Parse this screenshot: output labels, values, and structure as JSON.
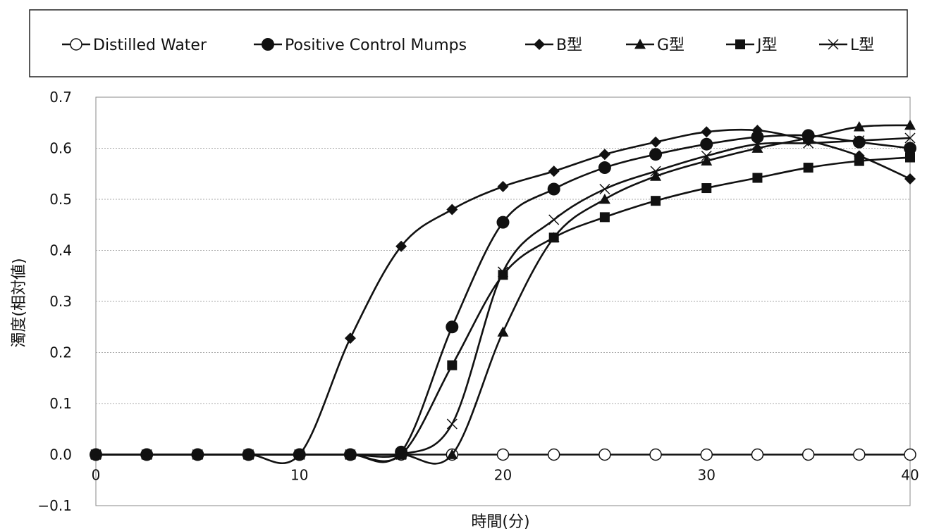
{
  "chart_data": {
    "type": "line",
    "title": "",
    "xlabel": "時間(分)",
    "ylabel": "濁度(相対値)",
    "xlim": [
      0,
      40
    ],
    "ylim": [
      -0.1,
      0.7
    ],
    "xticks": [
      0,
      10,
      20,
      30,
      40
    ],
    "xtick_labels": [
      "0",
      "10",
      "20",
      "30",
      "40"
    ],
    "yticks": [
      -0.1,
      0.0,
      0.1,
      0.2,
      0.3,
      0.4,
      0.5,
      0.6,
      0.7
    ],
    "ytick_labels": [
      "−0.1",
      "0.0",
      "0.1",
      "0.2",
      "0.3",
      "0.4",
      "0.5",
      "0.6",
      "0.7"
    ],
    "grid": "horizontal",
    "legend_position": "top",
    "x": [
      0,
      2.5,
      5,
      7.5,
      10,
      12.5,
      15,
      17.5,
      20,
      22.5,
      25,
      27.5,
      30,
      32.5,
      35,
      37.5,
      40
    ],
    "series": [
      {
        "name": "Distilled Water",
        "marker": "circle-open",
        "values": [
          0.0,
          0.0,
          0.0,
          0.0,
          0.0,
          0.0,
          0.0,
          0.0,
          0.0,
          0.0,
          0.0,
          0.0,
          0.0,
          0.0,
          0.0,
          0.0,
          0.0
        ]
      },
      {
        "name": "Positive Control Mumps",
        "marker": "circle",
        "values": [
          0.0,
          0.0,
          0.0,
          0.0,
          0.0,
          0.0,
          0.005,
          0.25,
          0.455,
          0.52,
          0.562,
          0.588,
          0.608,
          0.622,
          0.625,
          0.612,
          0.6
        ]
      },
      {
        "name": "B型",
        "marker": "diamond",
        "values": [
          0.0,
          0.0,
          0.0,
          0.0,
          0.0,
          0.228,
          0.408,
          0.48,
          0.525,
          0.555,
          0.588,
          0.612,
          0.632,
          0.635,
          0.615,
          0.585,
          0.54
        ]
      },
      {
        "name": "G型",
        "marker": "triangle",
        "values": [
          0.0,
          0.0,
          0.0,
          0.0,
          0.0,
          0.0,
          0.0,
          0.0,
          0.24,
          0.425,
          0.5,
          0.545,
          0.575,
          0.6,
          0.62,
          0.642,
          0.645
        ]
      },
      {
        "name": "J型",
        "marker": "square",
        "values": [
          0.0,
          0.0,
          0.0,
          0.0,
          0.0,
          0.0,
          0.0,
          0.175,
          0.352,
          0.425,
          0.465,
          0.497,
          0.522,
          0.542,
          0.562,
          0.575,
          0.582
        ]
      },
      {
        "name": "L型",
        "marker": "x",
        "values": [
          0.0,
          0.0,
          0.0,
          0.0,
          0.0,
          0.0,
          0.0,
          0.06,
          0.358,
          0.46,
          0.52,
          0.555,
          0.585,
          0.608,
          0.61,
          0.615,
          0.62
        ]
      }
    ]
  }
}
